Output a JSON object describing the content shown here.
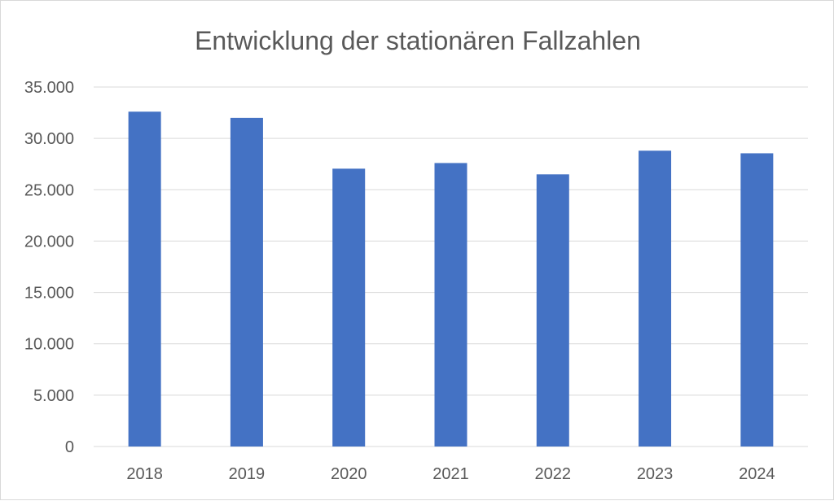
{
  "chart_data": {
    "type": "bar",
    "title": "Entwicklung der stationären Fallzahlen",
    "categories": [
      "2018",
      "2019",
      "2020",
      "2021",
      "2022",
      "2023",
      "2024"
    ],
    "values": [
      32600,
      32000,
      27050,
      27600,
      26500,
      28800,
      28550
    ],
    "ylim": [
      0,
      35000
    ],
    "yticks": [
      0,
      5000,
      10000,
      15000,
      20000,
      25000,
      30000,
      35000
    ],
    "ytick_labels": [
      "0",
      "5.000",
      "10.000",
      "15.000",
      "20.000",
      "25.000",
      "30.000",
      "35.000"
    ],
    "xlabel": "",
    "ylabel": "",
    "grid": true,
    "legend": "none",
    "bar_color": "#4472C4"
  }
}
